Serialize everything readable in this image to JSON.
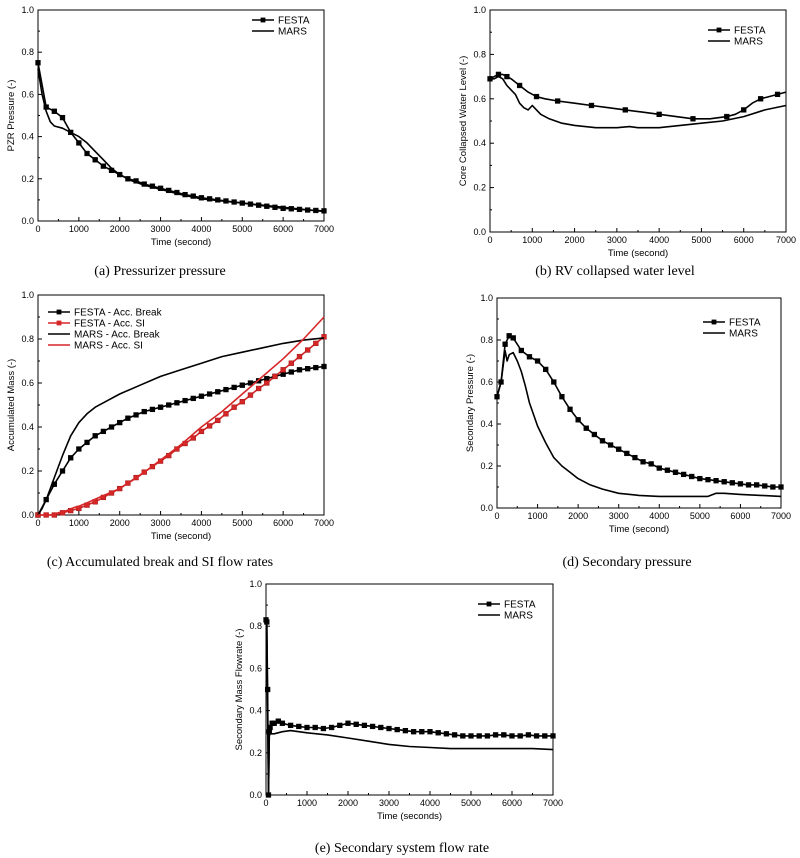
{
  "chart_data": [
    {
      "id": "a",
      "type": "line",
      "caption": "(a)  Pressurizer pressure",
      "xlabel": "Time (second)",
      "ylabel": "PZR Pressure (-)",
      "xlim": [
        0,
        7000
      ],
      "ylim": [
        0,
        1.0
      ],
      "xticks": [
        0,
        1000,
        2000,
        3000,
        4000,
        5000,
        6000,
        7000
      ],
      "yticks": [
        0.0,
        0.2,
        0.4,
        0.6,
        0.8,
        1.0
      ],
      "legend_position": "top-right",
      "series": [
        {
          "name": "FESTA",
          "color": "#000000",
          "marker": "square",
          "markevery": 1,
          "x": [
            0,
            200,
            400,
            600,
            800,
            1000,
            1200,
            1400,
            1600,
            1800,
            2000,
            2200,
            2400,
            2600,
            2800,
            3000,
            3200,
            3400,
            3600,
            3800,
            4000,
            4200,
            4400,
            4600,
            4800,
            5000,
            5200,
            5400,
            5600,
            5800,
            6000,
            6200,
            6400,
            6600,
            6800,
            7000
          ],
          "y": [
            0.75,
            0.54,
            0.52,
            0.49,
            0.42,
            0.37,
            0.32,
            0.29,
            0.26,
            0.24,
            0.22,
            0.2,
            0.19,
            0.175,
            0.165,
            0.155,
            0.145,
            0.135,
            0.125,
            0.118,
            0.11,
            0.105,
            0.1,
            0.095,
            0.09,
            0.085,
            0.08,
            0.075,
            0.07,
            0.065,
            0.06,
            0.058,
            0.055,
            0.052,
            0.05,
            0.048
          ]
        },
        {
          "name": "MARS",
          "color": "#000000",
          "marker": "none",
          "x": [
            0,
            100,
            200,
            300,
            400,
            600,
            800,
            1000,
            1200,
            1400,
            1600,
            1800,
            2000,
            2300,
            2600,
            3000,
            3500,
            4000,
            4500,
            5000,
            5500,
            6000,
            6500,
            7000
          ],
          "y": [
            0.72,
            0.6,
            0.52,
            0.47,
            0.45,
            0.44,
            0.42,
            0.4,
            0.37,
            0.33,
            0.29,
            0.25,
            0.22,
            0.19,
            0.17,
            0.15,
            0.125,
            0.105,
            0.095,
            0.085,
            0.075,
            0.065,
            0.055,
            0.045
          ]
        }
      ]
    },
    {
      "id": "b",
      "type": "line",
      "caption": "(b)  RV  collapsed  water  level",
      "xlabel": "Time (second)",
      "ylabel": "Core Collapsed Water Level (-)",
      "xlim": [
        0,
        7000
      ],
      "ylim": [
        0,
        1.0
      ],
      "xticks": [
        0,
        1000,
        2000,
        3000,
        4000,
        5000,
        6000,
        7000
      ],
      "yticks": [
        0.0,
        0.2,
        0.4,
        0.6,
        0.8,
        1.0
      ],
      "legend_position": "top-right",
      "series": [
        {
          "name": "FESTA",
          "color": "#000000",
          "marker": "square",
          "markevery": 2,
          "x": [
            0,
            100,
            200,
            300,
            400,
            500,
            700,
            900,
            1100,
            1300,
            1600,
            2000,
            2400,
            2800,
            3200,
            3600,
            4000,
            4400,
            4800,
            5200,
            5600,
            5800,
            6000,
            6200,
            6400,
            6600,
            6800,
            7000
          ],
          "y": [
            0.69,
            0.7,
            0.71,
            0.71,
            0.7,
            0.69,
            0.66,
            0.63,
            0.61,
            0.6,
            0.59,
            0.58,
            0.57,
            0.56,
            0.55,
            0.54,
            0.53,
            0.52,
            0.51,
            0.51,
            0.52,
            0.53,
            0.55,
            0.58,
            0.6,
            0.61,
            0.62,
            0.63
          ]
        },
        {
          "name": "MARS",
          "color": "#000000",
          "marker": "none",
          "x": [
            0,
            100,
            200,
            300,
            400,
            500,
            600,
            700,
            800,
            900,
            1000,
            1100,
            1200,
            1400,
            1700,
            2000,
            2500,
            3000,
            3300,
            3500,
            4000,
            4500,
            5000,
            5500,
            6000,
            6500,
            7000
          ],
          "y": [
            0.69,
            0.69,
            0.7,
            0.69,
            0.66,
            0.64,
            0.62,
            0.58,
            0.56,
            0.55,
            0.57,
            0.55,
            0.53,
            0.51,
            0.49,
            0.48,
            0.47,
            0.47,
            0.475,
            0.47,
            0.47,
            0.48,
            0.49,
            0.5,
            0.52,
            0.55,
            0.57
          ]
        }
      ]
    },
    {
      "id": "c",
      "type": "line",
      "caption": "(c)  Accumulated  break  and  SI  flow  rates",
      "xlabel": "Time (second)",
      "ylabel": "Accumulated Mass (-)",
      "xlim": [
        0,
        7000
      ],
      "ylim": [
        0,
        1.0
      ],
      "xticks": [
        0,
        1000,
        2000,
        3000,
        4000,
        5000,
        6000,
        7000
      ],
      "yticks": [
        0.0,
        0.2,
        0.4,
        0.6,
        0.8,
        1.0
      ],
      "legend_position": "top-left",
      "series": [
        {
          "name": "FESTA - Acc. Break",
          "color": "#000000",
          "marker": "square",
          "markevery": 1,
          "x": [
            0,
            200,
            400,
            600,
            800,
            1000,
            1200,
            1400,
            1600,
            1800,
            2000,
            2200,
            2400,
            2600,
            2800,
            3000,
            3200,
            3400,
            3600,
            3800,
            4000,
            4200,
            4400,
            4600,
            4800,
            5000,
            5200,
            5400,
            5600,
            5800,
            6000,
            6200,
            6400,
            6600,
            6800,
            7000
          ],
          "y": [
            0.0,
            0.07,
            0.14,
            0.2,
            0.26,
            0.3,
            0.33,
            0.36,
            0.38,
            0.4,
            0.42,
            0.44,
            0.455,
            0.47,
            0.48,
            0.49,
            0.5,
            0.51,
            0.52,
            0.53,
            0.54,
            0.55,
            0.56,
            0.57,
            0.58,
            0.59,
            0.6,
            0.61,
            0.62,
            0.63,
            0.64,
            0.65,
            0.66,
            0.665,
            0.67,
            0.675
          ]
        },
        {
          "name": "FESTA - Acc. SI",
          "color": "#d62728",
          "marker": "square",
          "markevery": 1,
          "x": [
            0,
            200,
            400,
            600,
            800,
            1000,
            1200,
            1400,
            1600,
            1800,
            2000,
            2200,
            2400,
            2600,
            2800,
            3000,
            3200,
            3400,
            3600,
            3800,
            4000,
            4200,
            4400,
            4600,
            4800,
            5000,
            5200,
            5400,
            5600,
            5800,
            6000,
            6200,
            6400,
            6600,
            6800,
            7000
          ],
          "y": [
            0.0,
            0.0,
            0.0,
            0.01,
            0.02,
            0.03,
            0.045,
            0.06,
            0.08,
            0.1,
            0.12,
            0.145,
            0.17,
            0.195,
            0.22,
            0.245,
            0.27,
            0.3,
            0.325,
            0.35,
            0.38,
            0.405,
            0.43,
            0.46,
            0.49,
            0.515,
            0.545,
            0.575,
            0.6,
            0.63,
            0.66,
            0.69,
            0.72,
            0.75,
            0.78,
            0.81
          ]
        },
        {
          "name": "MARS - Acc. Break",
          "color": "#000000",
          "marker": "none",
          "x": [
            0,
            100,
            200,
            300,
            400,
            500,
            600,
            800,
            1000,
            1200,
            1400,
            1700,
            2000,
            2500,
            3000,
            3500,
            4000,
            4500,
            5000,
            5500,
            6000,
            6500,
            7000
          ],
          "y": [
            0.0,
            0.03,
            0.07,
            0.12,
            0.17,
            0.22,
            0.27,
            0.36,
            0.42,
            0.46,
            0.49,
            0.52,
            0.55,
            0.59,
            0.63,
            0.66,
            0.69,
            0.72,
            0.74,
            0.76,
            0.78,
            0.795,
            0.805
          ]
        },
        {
          "name": "MARS - Acc. SI",
          "color": "#d62728",
          "marker": "none",
          "x": [
            0,
            300,
            500,
            700,
            900,
            1000,
            1200,
            1500,
            2000,
            2500,
            3000,
            3500,
            4000,
            4500,
            5000,
            5500,
            6000,
            6500,
            7000
          ],
          "y": [
            0.0,
            0.0,
            0.01,
            0.02,
            0.035,
            0.04,
            0.055,
            0.08,
            0.12,
            0.18,
            0.25,
            0.32,
            0.4,
            0.47,
            0.55,
            0.63,
            0.71,
            0.8,
            0.9
          ]
        }
      ]
    },
    {
      "id": "d",
      "type": "line",
      "caption": "(d)  Secondary  pressure",
      "xlabel": "Time (second)",
      "ylabel": "Secondary Pressure (-)",
      "xlim": [
        0,
        7000
      ],
      "ylim": [
        0,
        1.0
      ],
      "xticks": [
        0,
        1000,
        2000,
        3000,
        4000,
        5000,
        6000,
        7000
      ],
      "yticks": [
        0.0,
        0.2,
        0.4,
        0.6,
        0.8,
        1.0
      ],
      "legend_position": "top-right",
      "series": [
        {
          "name": "FESTA",
          "color": "#000000",
          "marker": "square",
          "markevery": 1,
          "x": [
            0,
            100,
            200,
            300,
            400,
            600,
            800,
            1000,
            1200,
            1400,
            1600,
            1800,
            2000,
            2200,
            2400,
            2600,
            2800,
            3000,
            3200,
            3400,
            3600,
            3800,
            4000,
            4200,
            4400,
            4600,
            4800,
            5000,
            5200,
            5400,
            5600,
            5800,
            6000,
            6200,
            6400,
            6600,
            6800,
            7000
          ],
          "y": [
            0.53,
            0.6,
            0.78,
            0.82,
            0.81,
            0.75,
            0.72,
            0.7,
            0.66,
            0.6,
            0.53,
            0.47,
            0.42,
            0.38,
            0.35,
            0.32,
            0.3,
            0.28,
            0.26,
            0.24,
            0.22,
            0.21,
            0.19,
            0.18,
            0.17,
            0.16,
            0.15,
            0.14,
            0.135,
            0.13,
            0.125,
            0.12,
            0.115,
            0.11,
            0.11,
            0.105,
            0.1,
            0.1
          ]
        },
        {
          "name": "MARS",
          "color": "#000000",
          "marker": "none",
          "x": [
            0,
            100,
            200,
            250,
            300,
            400,
            500,
            600,
            700,
            800,
            1000,
            1200,
            1400,
            1600,
            1800,
            2000,
            2300,
            2600,
            3000,
            3500,
            4000,
            4500,
            5000,
            5200,
            5400,
            5600,
            6000,
            6500,
            7000
          ],
          "y": [
            0.53,
            0.6,
            0.75,
            0.7,
            0.73,
            0.74,
            0.7,
            0.65,
            0.58,
            0.5,
            0.39,
            0.31,
            0.24,
            0.2,
            0.17,
            0.14,
            0.11,
            0.09,
            0.07,
            0.06,
            0.055,
            0.055,
            0.055,
            0.055,
            0.07,
            0.07,
            0.065,
            0.06,
            0.055
          ]
        }
      ]
    },
    {
      "id": "e",
      "type": "line",
      "caption": "(e)  Secondary  system  flow  rate",
      "xlabel": "Time (seconds)",
      "ylabel": "Secondary Mass Flowrate (-)",
      "xlim": [
        0,
        7000
      ],
      "ylim": [
        0,
        1.0
      ],
      "xticks": [
        0,
        1000,
        2000,
        3000,
        4000,
        5000,
        6000,
        7000
      ],
      "yticks": [
        0.0,
        0.2,
        0.4,
        0.6,
        0.8,
        1.0
      ],
      "legend_position": "top-right",
      "series": [
        {
          "name": "FESTA",
          "color": "#000000",
          "marker": "square",
          "markevery": 1,
          "x": [
            0,
            20,
            40,
            60,
            80,
            100,
            150,
            200,
            300,
            400,
            600,
            800,
            1000,
            1200,
            1400,
            1600,
            1800,
            2000,
            2200,
            2400,
            2600,
            2800,
            3000,
            3200,
            3400,
            3600,
            3800,
            4000,
            4200,
            4400,
            4600,
            4800,
            5000,
            5200,
            5400,
            5600,
            5800,
            6000,
            6200,
            6400,
            6600,
            6800,
            7000
          ],
          "y": [
            0.83,
            0.82,
            0.5,
            0.0,
            0.3,
            0.32,
            0.34,
            0.34,
            0.35,
            0.34,
            0.33,
            0.325,
            0.32,
            0.32,
            0.315,
            0.32,
            0.33,
            0.34,
            0.335,
            0.33,
            0.325,
            0.32,
            0.315,
            0.31,
            0.305,
            0.3,
            0.3,
            0.3,
            0.295,
            0.29,
            0.285,
            0.28,
            0.28,
            0.28,
            0.28,
            0.285,
            0.285,
            0.28,
            0.28,
            0.285,
            0.28,
            0.28,
            0.28
          ]
        },
        {
          "name": "MARS",
          "color": "#000000",
          "marker": "none",
          "x": [
            0,
            20,
            40,
            60,
            80,
            100,
            200,
            400,
            600,
            800,
            1000,
            1500,
            2000,
            2500,
            3000,
            3500,
            4000,
            4500,
            5000,
            5500,
            6000,
            6500,
            7000
          ],
          "y": [
            0.83,
            0.8,
            0.4,
            0.0,
            0.28,
            0.29,
            0.29,
            0.3,
            0.305,
            0.3,
            0.295,
            0.285,
            0.27,
            0.255,
            0.24,
            0.23,
            0.225,
            0.22,
            0.22,
            0.22,
            0.22,
            0.22,
            0.215
          ]
        }
      ]
    }
  ]
}
